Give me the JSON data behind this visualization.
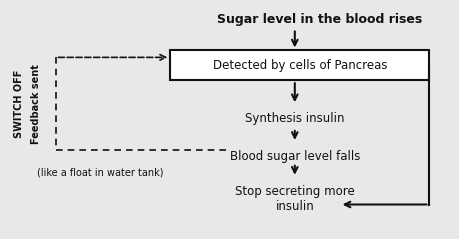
{
  "title": "Sugar level in the blood rises",
  "box_text": "Detected by cells of Pancreas",
  "step2": "Synthesis insulin",
  "step3": "Blood sugar level falls",
  "step4": "Stop secreting more\ninsulin",
  "left_label1": "SWITCH OFF",
  "left_label2": "Feedback sent",
  "note": "(like a float in water tank)",
  "bg_color": "#e8e8e8",
  "text_color": "#111111",
  "box_color": "#ffffff",
  "arrow_color": "#111111"
}
